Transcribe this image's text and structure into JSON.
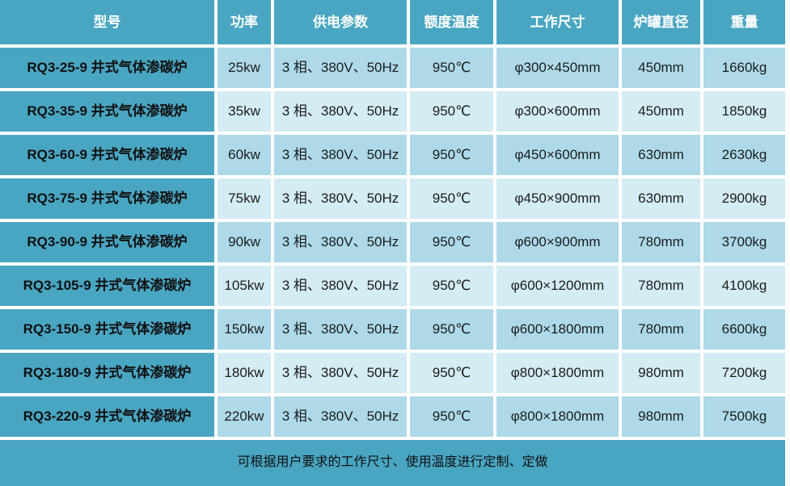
{
  "colors": {
    "accent_teal": "#49a6c2",
    "row_odd": "#aed9e9",
    "row_even": "#d4ecf4",
    "grid_line": "#ffffff",
    "header_text": "#ffffff",
    "body_text": "#1c1c1c"
  },
  "table": {
    "headers": [
      "型号",
      "功率",
      "供电参数",
      "额度温度",
      "工作尺寸",
      "炉罐直径",
      "重量"
    ],
    "rows": [
      {
        "model": "RQ3-25-9 井式气体渗碳炉",
        "power": "25kw",
        "supply": "3 相、380V、50Hz",
        "temp": "950℃",
        "size": "φ300×450mm",
        "diameter": "450mm",
        "weight": "1660kg"
      },
      {
        "model": "RQ3-35-9 井式气体渗碳炉",
        "power": "35kw",
        "supply": "3 相、380V、50Hz",
        "temp": "950℃",
        "size": "φ300×600mm",
        "diameter": "450mm",
        "weight": "1850kg"
      },
      {
        "model": "RQ3-60-9 井式气体渗碳炉",
        "power": "60kw",
        "supply": "3 相、380V、50Hz",
        "temp": "950℃",
        "size": "φ450×600mm",
        "diameter": "630mm",
        "weight": "2630kg"
      },
      {
        "model": "RQ3-75-9 井式气体渗碳炉",
        "power": "75kw",
        "supply": "3 相、380V、50Hz",
        "temp": "950℃",
        "size": "φ450×900mm",
        "diameter": "630mm",
        "weight": "2900kg"
      },
      {
        "model": "RQ3-90-9 井式气体渗碳炉",
        "power": "90kw",
        "supply": "3 相、380V、50Hz",
        "temp": "950℃",
        "size": "φ600×900mm",
        "diameter": "780mm",
        "weight": "3700kg"
      },
      {
        "model": "RQ3-105-9 井式气体渗碳炉",
        "power": "105kw",
        "supply": "3 相、380V、50Hz",
        "temp": "950℃",
        "size": "φ600×1200mm",
        "diameter": "780mm",
        "weight": "4100kg"
      },
      {
        "model": "RQ3-150-9 井式气体渗碳炉",
        "power": "150kw",
        "supply": "3 相、380V、50Hz",
        "temp": "950℃",
        "size": "φ600×1800mm",
        "diameter": "780mm",
        "weight": "6600kg"
      },
      {
        "model": "RQ3-180-9 井式气体渗碳炉",
        "power": "180kw",
        "supply": "3 相、380V、50Hz",
        "temp": "950℃",
        "size": "φ800×1800mm",
        "diameter": "980mm",
        "weight": "7200kg"
      },
      {
        "model": "RQ3-220-9 井式气体渗碳炉",
        "power": "220kw",
        "supply": "3 相、380V、50Hz",
        "temp": "950℃",
        "size": "φ800×1800mm",
        "diameter": "980mm",
        "weight": "7500kg"
      }
    ],
    "footer_note": "可根据用户要求的工作尺寸、使用温度进行定制、定做"
  }
}
